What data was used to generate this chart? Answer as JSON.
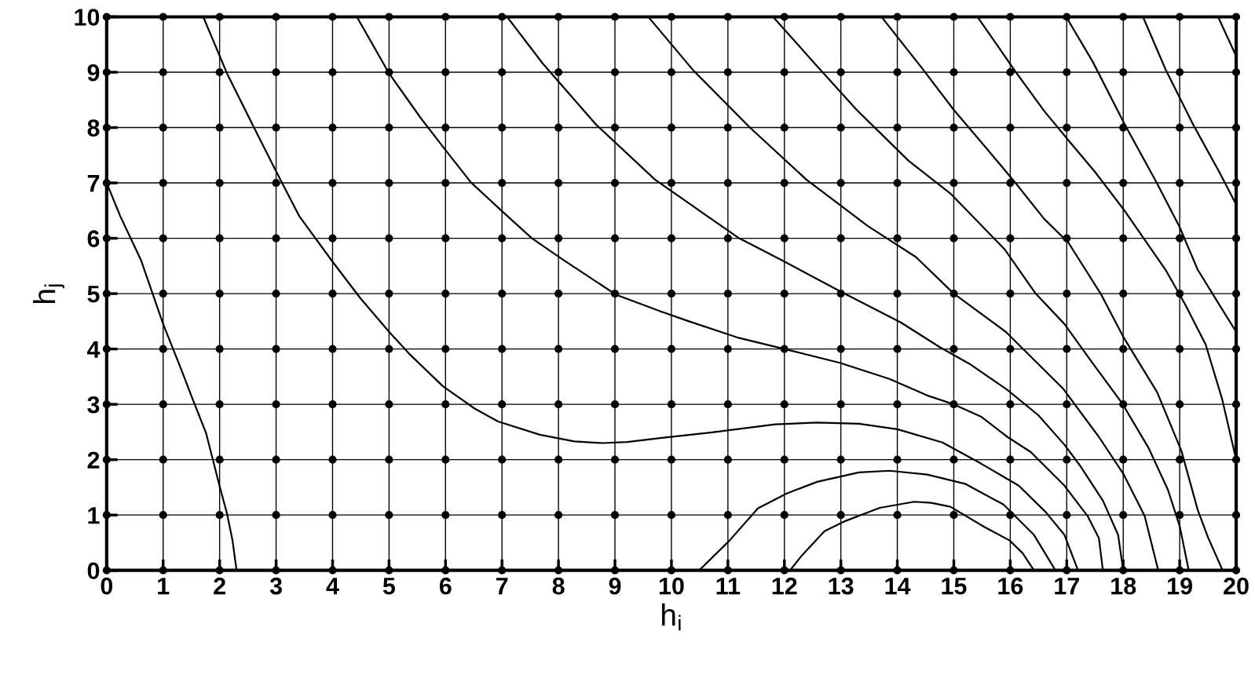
{
  "chart_data": {
    "type": "line",
    "xlabel": "h$_{i}$",
    "ylabel": "h$_{j}$",
    "xlim": [
      0,
      20
    ],
    "ylim": [
      0,
      10
    ],
    "xticks": [
      0,
      1,
      2,
      3,
      4,
      5,
      6,
      7,
      8,
      9,
      10,
      11,
      12,
      13,
      14,
      15,
      16,
      17,
      18,
      19,
      20
    ],
    "yticks": [
      0,
      1,
      2,
      3,
      4,
      5,
      6,
      7,
      8,
      9,
      10
    ],
    "grid": true,
    "line_style": "solid",
    "series": [
      {
        "color": "#000000",
        "x": [
          0,
          0.24,
          0.61,
          1,
          1.32,
          1.52,
          1.76,
          2,
          2.13,
          2.23,
          2.3
        ],
        "values": [
          7,
          6.4,
          5.6,
          4.45,
          3.63,
          3.1,
          2.48,
          1.52,
          1.03,
          0.53,
          0
        ]
      },
      {
        "color": "#000000",
        "x": [
          1.71,
          2.13,
          2.6,
          3.0,
          3.41,
          3.99,
          4.49,
          5.0,
          5.37,
          5.95,
          6.52,
          6.93,
          7.67,
          8.28,
          8.78,
          9.22,
          9.8,
          10.69,
          11.84,
          12.58,
          13.32,
          14.0,
          14.8,
          15.48,
          16.15,
          16.63,
          16.96,
          17.2
        ],
        "values": [
          10,
          8.98,
          8.02,
          7.21,
          6.4,
          5.59,
          4.92,
          4.31,
          3.9,
          3.33,
          2.92,
          2.69,
          2.45,
          2.33,
          2.3,
          2.32,
          2.39,
          2.49,
          2.64,
          2.67,
          2.65,
          2.55,
          2.31,
          1.93,
          1.53,
          1.05,
          0.64,
          0
        ]
      },
      {
        "color": "#000000",
        "x": [
          10.49,
          11.03,
          11.53,
          12.04,
          12.58,
          13.32,
          13.86,
          14.53,
          15.21,
          15.88,
          16.42,
          16.8
        ],
        "values": [
          0,
          0.54,
          1.12,
          1.39,
          1.6,
          1.77,
          1.8,
          1.73,
          1.56,
          1.19,
          0.64,
          0
        ]
      },
      {
        "color": "#000000",
        "x": [
          12.1,
          12.31,
          12.71,
          13.05,
          13.69,
          14.3,
          14.6,
          14.94,
          15.55,
          15.99,
          16.22,
          16.42
        ],
        "values": [
          0,
          0.27,
          0.71,
          0.88,
          1.13,
          1.24,
          1.22,
          1.15,
          0.78,
          0.54,
          0.31,
          0
        ]
      },
      {
        "color": "#000000",
        "x": [
          4.43,
          5,
          5.57,
          5.98,
          6.45,
          6.99,
          7.53,
          8.07,
          9.02,
          9.81,
          10.28,
          11.16,
          12.0,
          12.98,
          13.86,
          14.53,
          15.0,
          15.48,
          15.95,
          16.36,
          16.96,
          17.37,
          17.57,
          17.64
        ],
        "values": [
          10,
          8.98,
          8.16,
          7.62,
          7.01,
          6.5,
          6.0,
          5.62,
          4.98,
          4.68,
          4.51,
          4.21,
          4.0,
          3.75,
          3.46,
          3.16,
          3.0,
          2.78,
          2.41,
          2.14,
          1.53,
          0.98,
          0.58,
          0
        ]
      },
      {
        "color": "#000000",
        "x": [
          7.09,
          7.72,
          8.65,
          9.71,
          10.58,
          11.2,
          11.96,
          13.01,
          14.06,
          14.74,
          15.28,
          15.95,
          16.5,
          16.96,
          17.23,
          17.64,
          17.91,
          18.0
        ],
        "values": [
          10,
          9.16,
          8.07,
          7.06,
          6.44,
          6.0,
          5.6,
          5.03,
          4.48,
          4.04,
          3.73,
          3.26,
          2.8,
          2.27,
          1.9,
          1.26,
          0.64,
          0
        ]
      },
      {
        "color": "#000000",
        "x": [
          9.59,
          10.39,
          11.39,
          12.39,
          13.48,
          14.33,
          15.0,
          15.92,
          16.93,
          17.57,
          18.01,
          18.38,
          18.62
        ],
        "values": [
          10,
          9.03,
          8.0,
          7.06,
          6.22,
          5.66,
          5.0,
          4.31,
          3.29,
          2.41,
          1.73,
          0.98,
          0
        ]
      },
      {
        "color": "#000000",
        "x": [
          11.8,
          12.5,
          13.3,
          14.2,
          14.95,
          15.9,
          16.45,
          16.96,
          17.44,
          17.98,
          18.45,
          18.79,
          19.0,
          19.16
        ],
        "values": [
          10,
          9.2,
          8.3,
          7.4,
          6.8,
          5.8,
          5.0,
          4.45,
          3.77,
          3.02,
          2.21,
          1.46,
          0.8,
          0
        ]
      },
      {
        "color": "#000000",
        "x": [
          13.72,
          14.44,
          15.0,
          15.6,
          16.1,
          16.6,
          17.03,
          17.6,
          18.0,
          18.6,
          19.03,
          19.32,
          19.5,
          19.76
        ],
        "values": [
          10,
          9.07,
          8.32,
          7.6,
          6.99,
          6.35,
          5.92,
          5.0,
          4.22,
          3.22,
          2.16,
          1.09,
          0.6,
          0
        ]
      },
      {
        "color": "#000000",
        "x": [
          15.42,
          16.1,
          16.6,
          17.03,
          17.5,
          18.03,
          18.75,
          19.1,
          19.46,
          19.75,
          20
        ],
        "values": [
          10,
          9,
          8.3,
          7.77,
          7.2,
          6.49,
          5.43,
          4.8,
          4.08,
          3.1,
          2.0
        ]
      },
      {
        "color": "#000000",
        "x": [
          16.99,
          17.46,
          18.03,
          18.6,
          19.0,
          19.32,
          19.7,
          20
        ],
        "values": [
          10,
          9.19,
          8.05,
          6.99,
          6.2,
          5.43,
          4.8,
          4.31
        ]
      },
      {
        "color": "#000000",
        "x": [
          18.35,
          18.75,
          19.24,
          19.7,
          20
        ],
        "values": [
          10,
          9.05,
          8.05,
          7.2,
          6.61
        ]
      },
      {
        "color": "#000000",
        "x": [
          19.68,
          20
        ],
        "values": [
          10,
          9.29
        ]
      },
      {
        "type": "scatter",
        "color": "#000000",
        "marker": "circle",
        "x": [
          0,
          1,
          2,
          3,
          4,
          5,
          6,
          7,
          8,
          9,
          10,
          11,
          12,
          13,
          14,
          15,
          16,
          17,
          18,
          19,
          20,
          0,
          1,
          2,
          3,
          4,
          5,
          6,
          7,
          8,
          9,
          10,
          11,
          12,
          13,
          14,
          15,
          16,
          17,
          18,
          19,
          20,
          0,
          1,
          2,
          3,
          4,
          5,
          6,
          7,
          8,
          9,
          10,
          11,
          12,
          13,
          14,
          15,
          16,
          17,
          18,
          19,
          20,
          0,
          1,
          2,
          3,
          4,
          5,
          6,
          7,
          8,
          9,
          10,
          11,
          12,
          13,
          14,
          15,
          16,
          17,
          18,
          19,
          20,
          0,
          1,
          2,
          3,
          4,
          5,
          6,
          7,
          8,
          9,
          10,
          11,
          12,
          13,
          14,
          15,
          16,
          17,
          18,
          19,
          20,
          0,
          1,
          2,
          3,
          4,
          5,
          6,
          7,
          8,
          9,
          10,
          11,
          12,
          13,
          14,
          15,
          16,
          17,
          18,
          19,
          20,
          0,
          1,
          2,
          3,
          4,
          5,
          6,
          7,
          8,
          9,
          10,
          11,
          12,
          13,
          14,
          15,
          16,
          17,
          18,
          19,
          20,
          0,
          1,
          2,
          3,
          4,
          5,
          6,
          7,
          8,
          9,
          10,
          11,
          12,
          13,
          14,
          15,
          16,
          17,
          18,
          19,
          20,
          0,
          1,
          2,
          3,
          4,
          5,
          6,
          7,
          8,
          9,
          10,
          11,
          12,
          13,
          14,
          15,
          16,
          17,
          18,
          19,
          20,
          0,
          1,
          2,
          3,
          4,
          5,
          6,
          7,
          8,
          9,
          10,
          11,
          12,
          13,
          14,
          15,
          16,
          17,
          18,
          19,
          20,
          0,
          1,
          2,
          3,
          4,
          5,
          6,
          7,
          8,
          9,
          10,
          11,
          12,
          13,
          14,
          15,
          16,
          17,
          18,
          19,
          20
        ],
        "values": [
          0,
          0,
          0,
          0,
          0,
          0,
          0,
          0,
          0,
          0,
          0,
          0,
          0,
          0,
          0,
          0,
          0,
          0,
          0,
          0,
          0,
          1,
          1,
          1,
          1,
          1,
          1,
          1,
          1,
          1,
          1,
          1,
          1,
          1,
          1,
          1,
          1,
          1,
          1,
          1,
          1,
          1,
          2,
          2,
          2,
          2,
          2,
          2,
          2,
          2,
          2,
          2,
          2,
          2,
          2,
          2,
          2,
          2,
          2,
          2,
          2,
          2,
          2,
          3,
          3,
          3,
          3,
          3,
          3,
          3,
          3,
          3,
          3,
          3,
          3,
          3,
          3,
          3,
          3,
          3,
          3,
          3,
          3,
          3,
          4,
          4,
          4,
          4,
          4,
          4,
          4,
          4,
          4,
          4,
          4,
          4,
          4,
          4,
          4,
          4,
          4,
          4,
          4,
          4,
          4,
          5,
          5,
          5,
          5,
          5,
          5,
          5,
          5,
          5,
          5,
          5,
          5,
          5,
          5,
          5,
          5,
          5,
          5,
          5,
          5,
          5,
          6,
          6,
          6,
          6,
          6,
          6,
          6,
          6,
          6,
          6,
          6,
          6,
          6,
          6,
          6,
          6,
          6,
          6,
          6,
          6,
          6,
          7,
          7,
          7,
          7,
          7,
          7,
          7,
          7,
          7,
          7,
          7,
          7,
          7,
          7,
          7,
          7,
          7,
          7,
          7,
          7,
          7,
          8,
          8,
          8,
          8,
          8,
          8,
          8,
          8,
          8,
          8,
          8,
          8,
          8,
          8,
          8,
          8,
          8,
          8,
          8,
          8,
          8,
          9,
          9,
          9,
          9,
          9,
          9,
          9,
          9,
          9,
          9,
          9,
          9,
          9,
          9,
          9,
          9,
          9,
          9,
          9,
          9,
          9,
          10,
          10,
          10,
          10,
          10,
          10,
          10,
          10,
          10,
          10,
          10,
          10,
          10,
          10,
          10,
          10,
          10,
          10,
          10,
          10,
          10
        ]
      }
    ]
  }
}
